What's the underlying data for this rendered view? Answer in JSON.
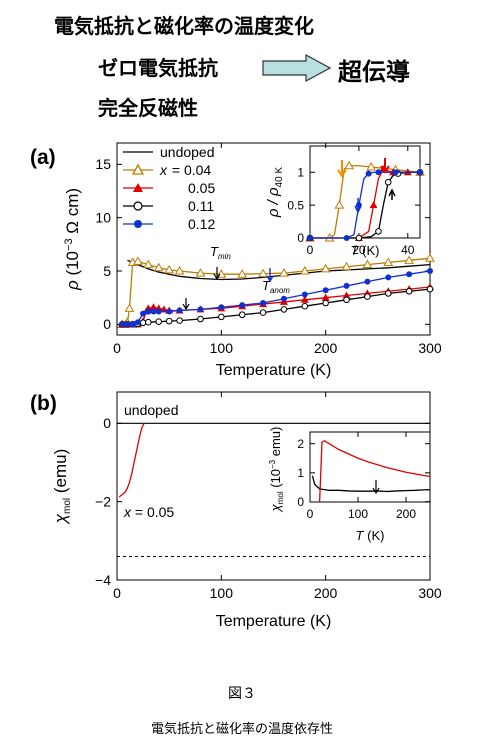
{
  "header": {
    "title": "電気抵抗と磁化率の温度変化",
    "line1_left": "ゼロ電気抵抗",
    "line1_right": "超伝導",
    "line2": "完全反磁性"
  },
  "caption": {
    "figure": "図３",
    "text": "電気抵抗と磁化率の温度依存性"
  },
  "colors": {
    "undoped": "#000000",
    "x004": "#c07a00",
    "x005": "#e00000",
    "x011": "#000000",
    "x012": "#1030d0",
    "chi_x005": "#e00000",
    "arrow_fill": "#b8e0e0"
  },
  "chart_data": [
    {
      "panel": "(a)",
      "type": "line",
      "xlabel": "Temperature (K)",
      "ylabel_parts": {
        "rho": "ρ",
        "open": " (10",
        "exp": "−3",
        "unit": " Ω cm)"
      },
      "xlim": [
        0,
        300
      ],
      "ylim": [
        -1,
        17
      ],
      "xticks": [
        "0",
        "100",
        "200",
        "300"
      ],
      "yticks": [
        "0",
        "5",
        "10",
        "15"
      ],
      "legend_prefix": "x = ",
      "legend": [
        "undoped",
        "0.04",
        "0.05",
        "0.11",
        "0.12"
      ],
      "annotations": {
        "tmin": "T",
        "tmin_sub": "min",
        "tanom": "T",
        "tanom_sub": "anom"
      },
      "series": [
        {
          "name": "undoped",
          "x": [
            10,
            20,
            30,
            40,
            50,
            60,
            80,
            100,
            120,
            140,
            160,
            180,
            200,
            220,
            240,
            260,
            280,
            300
          ],
          "y": [
            6.0,
            5.6,
            5.2,
            4.9,
            4.7,
            4.5,
            4.3,
            4.2,
            4.25,
            4.4,
            4.6,
            4.8,
            5.0,
            5.1,
            5.2,
            5.3,
            5.45,
            5.6
          ]
        },
        {
          "name": "0.04",
          "x": [
            5,
            8,
            10,
            12,
            15,
            20,
            30,
            40,
            50,
            60,
            80,
            100,
            120,
            140,
            160,
            180,
            200,
            220,
            240,
            260,
            280,
            300
          ],
          "y": [
            0,
            0,
            0.2,
            1.5,
            5.8,
            5.9,
            5.6,
            5.3,
            5.1,
            5.0,
            4.8,
            4.7,
            4.7,
            4.75,
            4.8,
            5.0,
            5.2,
            5.4,
            5.6,
            5.8,
            6.0,
            6.2
          ]
        },
        {
          "name": "0.05",
          "x": [
            5,
            10,
            15,
            20,
            25,
            28,
            30,
            35,
            40,
            45,
            50,
            60,
            80,
            100,
            120,
            140,
            160,
            180,
            200,
            220,
            240,
            260,
            280,
            300
          ],
          "y": [
            0,
            0,
            0,
            0,
            0.3,
            1.2,
            1.5,
            1.6,
            1.5,
            1.4,
            1.3,
            1.3,
            1.4,
            1.5,
            1.7,
            1.9,
            2.1,
            2.3,
            2.5,
            2.7,
            2.9,
            3.1,
            3.3,
            3.5
          ]
        },
        {
          "name": "0.11",
          "x": [
            5,
            10,
            15,
            18,
            20,
            25,
            30,
            40,
            50,
            60,
            80,
            100,
            120,
            140,
            160,
            180,
            200,
            220,
            240,
            260,
            280,
            300
          ],
          "y": [
            0,
            0,
            0,
            0,
            0.05,
            0.15,
            0.2,
            0.25,
            0.3,
            0.35,
            0.5,
            0.7,
            0.9,
            1.1,
            1.4,
            1.7,
            2.0,
            2.3,
            2.6,
            2.9,
            3.1,
            3.3
          ]
        },
        {
          "name": "0.12",
          "x": [
            5,
            10,
            15,
            20,
            25,
            30,
            35,
            40,
            50,
            60,
            80,
            100,
            120,
            140,
            160,
            180,
            200,
            220,
            240,
            260,
            280,
            300
          ],
          "y": [
            0,
            0,
            0,
            0.2,
            1.0,
            1.2,
            1.2,
            1.2,
            1.2,
            1.3,
            1.4,
            1.6,
            1.8,
            2.0,
            2.4,
            2.8,
            3.2,
            3.6,
            4.0,
            4.4,
            4.7,
            5.0
          ]
        }
      ]
    },
    {
      "panel": "(a) inset",
      "type": "line",
      "xlabel": "T (K)",
      "ylabel": "ρ / ρ",
      "ylabel_sub": "40 K",
      "xlim": [
        0,
        45
      ],
      "ylim": [
        0,
        1.4
      ],
      "xticks": [
        "0",
        "20",
        "40"
      ],
      "yticks": [
        "0",
        "0.5",
        "1"
      ],
      "series": [
        {
          "name": "0.04",
          "x": [
            0,
            5,
            8,
            10,
            12,
            14,
            16,
            20,
            25,
            30,
            35,
            40,
            45
          ],
          "y": [
            0,
            0,
            0,
            0.05,
            0.5,
            1.05,
            1.1,
            1.1,
            1.08,
            1.06,
            1.04,
            1.02,
            1.0
          ]
        },
        {
          "name": "0.05",
          "x": [
            0,
            10,
            20,
            24,
            26,
            28,
            30,
            32,
            34,
            36,
            40,
            45
          ],
          "y": [
            0,
            0,
            0,
            0.1,
            0.5,
            0.9,
            1.05,
            1.02,
            1.0,
            1.0,
            1.0,
            1.0
          ]
        },
        {
          "name": "0.11",
          "x": [
            0,
            10,
            20,
            25,
            28,
            30,
            32,
            34,
            36,
            40,
            45
          ],
          "y": [
            0,
            0,
            0,
            0.02,
            0.1,
            0.5,
            0.85,
            0.95,
            0.98,
            1.0,
            1.0
          ]
        },
        {
          "name": "0.12",
          "x": [
            0,
            10,
            15,
            18,
            20,
            22,
            24,
            26,
            28,
            30,
            35,
            40,
            45
          ],
          "y": [
            0,
            0,
            0,
            0.05,
            0.5,
            0.9,
            0.98,
            1.0,
            1.0,
            1.0,
            1.0,
            1.0,
            1.0
          ]
        }
      ]
    },
    {
      "panel": "(b)",
      "type": "line",
      "xlabel": "Temperature (K)",
      "ylabel": "χ",
      "ylabel_sub": "mol",
      "ylabel_unit": " (emu)",
      "xlim": [
        0,
        300
      ],
      "ylim": [
        -4,
        0.8
      ],
      "xticks": [
        "0",
        "100",
        "200",
        "300"
      ],
      "yticks": [
        "−4",
        "−2",
        "0"
      ],
      "labels": {
        "undoped": "undoped",
        "x005": "x = 0.05"
      },
      "dashed_level": -3.4,
      "series": [
        {
          "name": "undoped",
          "x": [
            0,
            300
          ],
          "y": [
            0,
            0
          ]
        },
        {
          "name": "0.05",
          "x": [
            2,
            5,
            8,
            10,
            12,
            14,
            16,
            18,
            20,
            22,
            24,
            26
          ],
          "y": [
            -1.88,
            -1.82,
            -1.75,
            -1.65,
            -1.5,
            -1.3,
            -1.05,
            -0.8,
            -0.55,
            -0.3,
            -0.1,
            0
          ]
        }
      ]
    },
    {
      "panel": "(b) inset",
      "type": "line",
      "xlabel": "T (K)",
      "ylabel": "χ",
      "ylabel_sub": "mol",
      "ylabel_unit": " (10",
      "ylabel_exp": "−3",
      "ylabel_end": " emu)",
      "xlim": [
        0,
        250
      ],
      "ylim": [
        0,
        2.4
      ],
      "xticks": [
        "0",
        "100",
        "200"
      ],
      "yticks": [
        "0",
        "1",
        "2"
      ],
      "series": [
        {
          "name": "undoped",
          "x": [
            5,
            10,
            20,
            40,
            60,
            80,
            100,
            120,
            140,
            160,
            180,
            200,
            220,
            240,
            250
          ],
          "y": [
            0.9,
            0.6,
            0.45,
            0.4,
            0.4,
            0.38,
            0.37,
            0.37,
            0.38,
            0.36,
            0.38,
            0.39,
            0.4,
            0.42,
            0.42
          ]
        },
        {
          "name": "0.05",
          "x": [
            20,
            25,
            30,
            40,
            60,
            80,
            100,
            120,
            140,
            160,
            180,
            200,
            220,
            240,
            250
          ],
          "y": [
            0,
            2.05,
            2.1,
            2.0,
            1.8,
            1.65,
            1.5,
            1.38,
            1.28,
            1.18,
            1.1,
            1.02,
            0.96,
            0.9,
            0.88
          ]
        }
      ]
    }
  ]
}
